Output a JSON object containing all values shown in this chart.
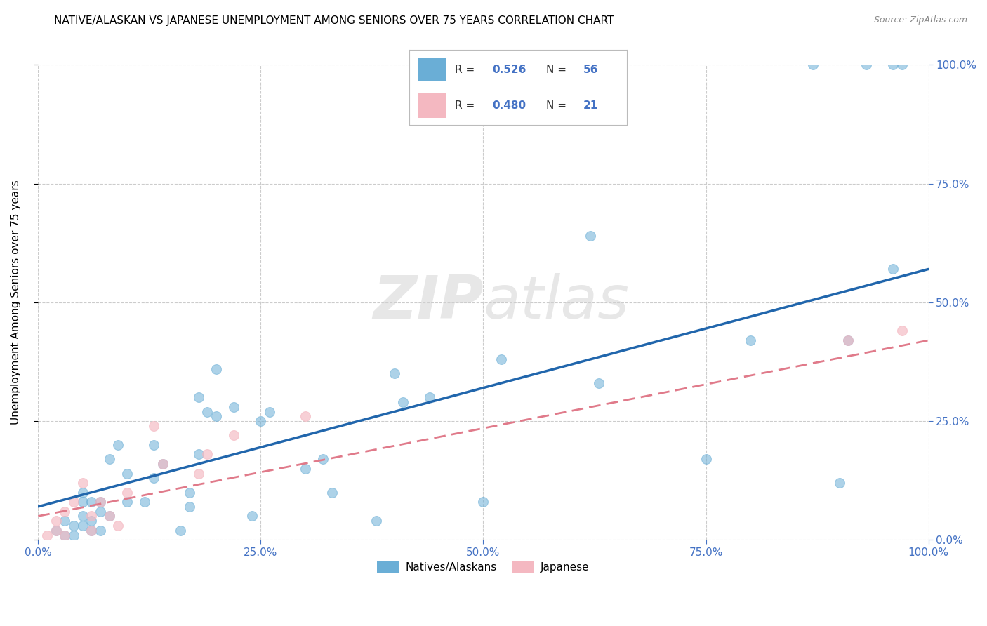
{
  "title": "NATIVE/ALASKAN VS JAPANESE UNEMPLOYMENT AMONG SENIORS OVER 75 YEARS CORRELATION CHART",
  "source": "Source: ZipAtlas.com",
  "ylabel": "Unemployment Among Seniors over 75 years",
  "xlim": [
    0,
    1.0
  ],
  "ylim": [
    0,
    1.0
  ],
  "xticks": [
    0.0,
    0.25,
    0.5,
    0.75,
    1.0
  ],
  "yticks": [
    0.0,
    0.25,
    0.5,
    0.75,
    1.0
  ],
  "xticklabels": [
    "0.0%",
    "25.0%",
    "50.0%",
    "75.0%",
    "100.0%"
  ],
  "yticklabels": [
    "0.0%",
    "25.0%",
    "50.0%",
    "75.0%",
    "100.0%"
  ],
  "blue_color": "#6aaed6",
  "pink_color": "#f4b8c1",
  "blue_line_color": "#2166ac",
  "pink_line_color": "#e07a8a",
  "watermark_zip": "ZIP",
  "watermark_atlas": "atlas",
  "legend_r1_label": "R = ",
  "legend_r1_val": "0.526",
  "legend_n1_label": "N = ",
  "legend_n1_val": "56",
  "legend_r2_label": "R = ",
  "legend_r2_val": "0.480",
  "legend_n2_label": "N = ",
  "legend_n2_val": "21",
  "blue_scatter_x": [
    0.02,
    0.03,
    0.03,
    0.04,
    0.04,
    0.05,
    0.05,
    0.05,
    0.05,
    0.06,
    0.06,
    0.06,
    0.07,
    0.07,
    0.07,
    0.08,
    0.08,
    0.09,
    0.1,
    0.1,
    0.12,
    0.13,
    0.13,
    0.14,
    0.16,
    0.17,
    0.17,
    0.18,
    0.18,
    0.19,
    0.2,
    0.2,
    0.22,
    0.24,
    0.25,
    0.26,
    0.3,
    0.32,
    0.33,
    0.38,
    0.4,
    0.41,
    0.44,
    0.5,
    0.52,
    0.62,
    0.63,
    0.75,
    0.8,
    0.87,
    0.9,
    0.91,
    0.93,
    0.96,
    0.96,
    0.97
  ],
  "blue_scatter_y": [
    0.02,
    0.01,
    0.04,
    0.01,
    0.03,
    0.03,
    0.05,
    0.08,
    0.1,
    0.02,
    0.04,
    0.08,
    0.02,
    0.06,
    0.08,
    0.05,
    0.17,
    0.2,
    0.08,
    0.14,
    0.08,
    0.13,
    0.2,
    0.16,
    0.02,
    0.07,
    0.1,
    0.18,
    0.3,
    0.27,
    0.26,
    0.36,
    0.28,
    0.05,
    0.25,
    0.27,
    0.15,
    0.17,
    0.1,
    0.04,
    0.35,
    0.29,
    0.3,
    0.08,
    0.38,
    0.64,
    0.33,
    0.17,
    0.42,
    1.0,
    0.12,
    0.42,
    1.0,
    0.57,
    1.0,
    1.0
  ],
  "pink_scatter_x": [
    0.01,
    0.02,
    0.02,
    0.03,
    0.03,
    0.04,
    0.05,
    0.06,
    0.06,
    0.07,
    0.08,
    0.09,
    0.1,
    0.13,
    0.14,
    0.18,
    0.19,
    0.22,
    0.3,
    0.91,
    0.97
  ],
  "pink_scatter_y": [
    0.01,
    0.02,
    0.04,
    0.01,
    0.06,
    0.08,
    0.12,
    0.02,
    0.05,
    0.08,
    0.05,
    0.03,
    0.1,
    0.24,
    0.16,
    0.14,
    0.18,
    0.22,
    0.26,
    0.42,
    0.44
  ],
  "blue_line_x": [
    0.0,
    1.0
  ],
  "blue_line_y": [
    0.07,
    0.57
  ],
  "pink_line_x": [
    0.0,
    1.0
  ],
  "pink_line_y": [
    0.05,
    0.42
  ],
  "grid_color": "#cccccc",
  "axis_color": "#4472c4",
  "marker_size": 100,
  "title_fontsize": 11,
  "source_fontsize": 9,
  "tick_fontsize": 11,
  "ylabel_fontsize": 11,
  "legend_label_fontsize": 11,
  "bottom_legend_label1": "Natives/Alaskans",
  "bottom_legend_label2": "Japanese"
}
